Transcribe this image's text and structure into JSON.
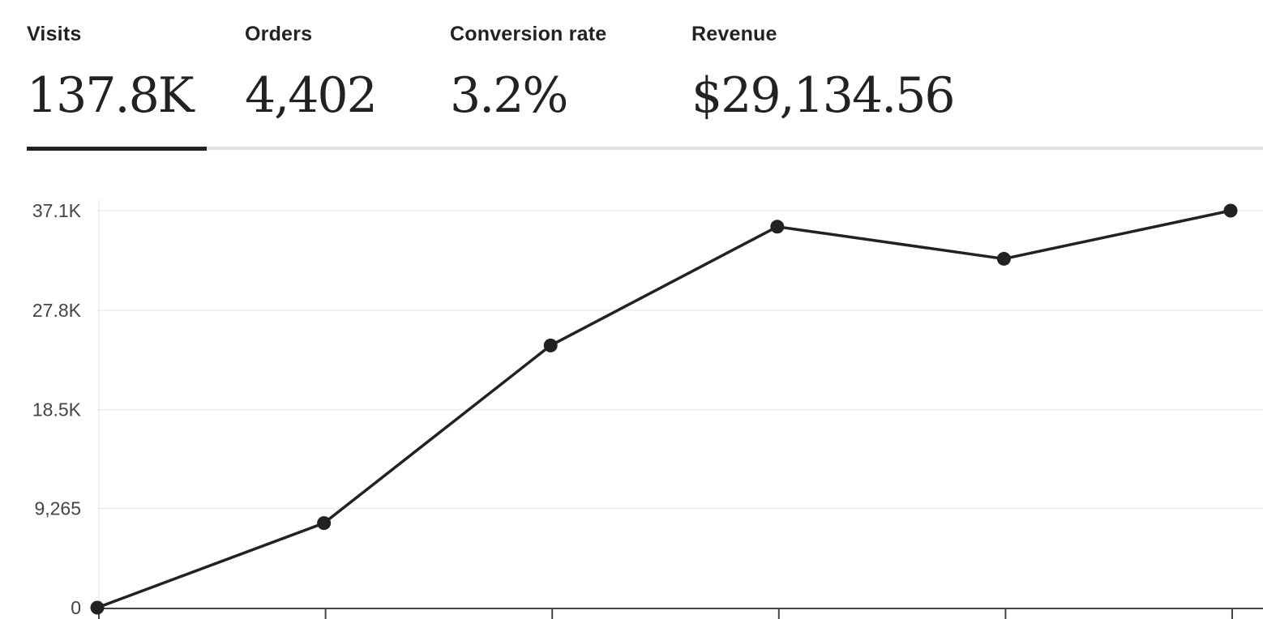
{
  "tabs": [
    {
      "label": "Visits",
      "value": "137.8K",
      "selected": true
    },
    {
      "label": "Orders",
      "value": "4,402",
      "selected": false
    },
    {
      "label": "Conversion rate",
      "value": "3.2%",
      "selected": false
    },
    {
      "label": "Revenue",
      "value": "$29,134.56",
      "selected": false
    }
  ],
  "colors": {
    "accent": "#222222",
    "track": "#e1e1e1",
    "grid": "#ebebeb",
    "axis": "#444444"
  },
  "chart_data": {
    "type": "line",
    "series": [
      {
        "values": [
          0,
          7900,
          24500,
          35600,
          32600,
          37100
        ]
      }
    ],
    "x": [
      0,
      1,
      2,
      3,
      4,
      5
    ],
    "xlabels": [],
    "y_ticks": [
      0,
      9265,
      18500,
      27800,
      37100
    ],
    "y_tick_labels": [
      "0",
      "9,265",
      "18.5K",
      "27.8K",
      "37.1K"
    ],
    "ylim": [
      0,
      37100
    ],
    "grid": true,
    "markers": true
  }
}
